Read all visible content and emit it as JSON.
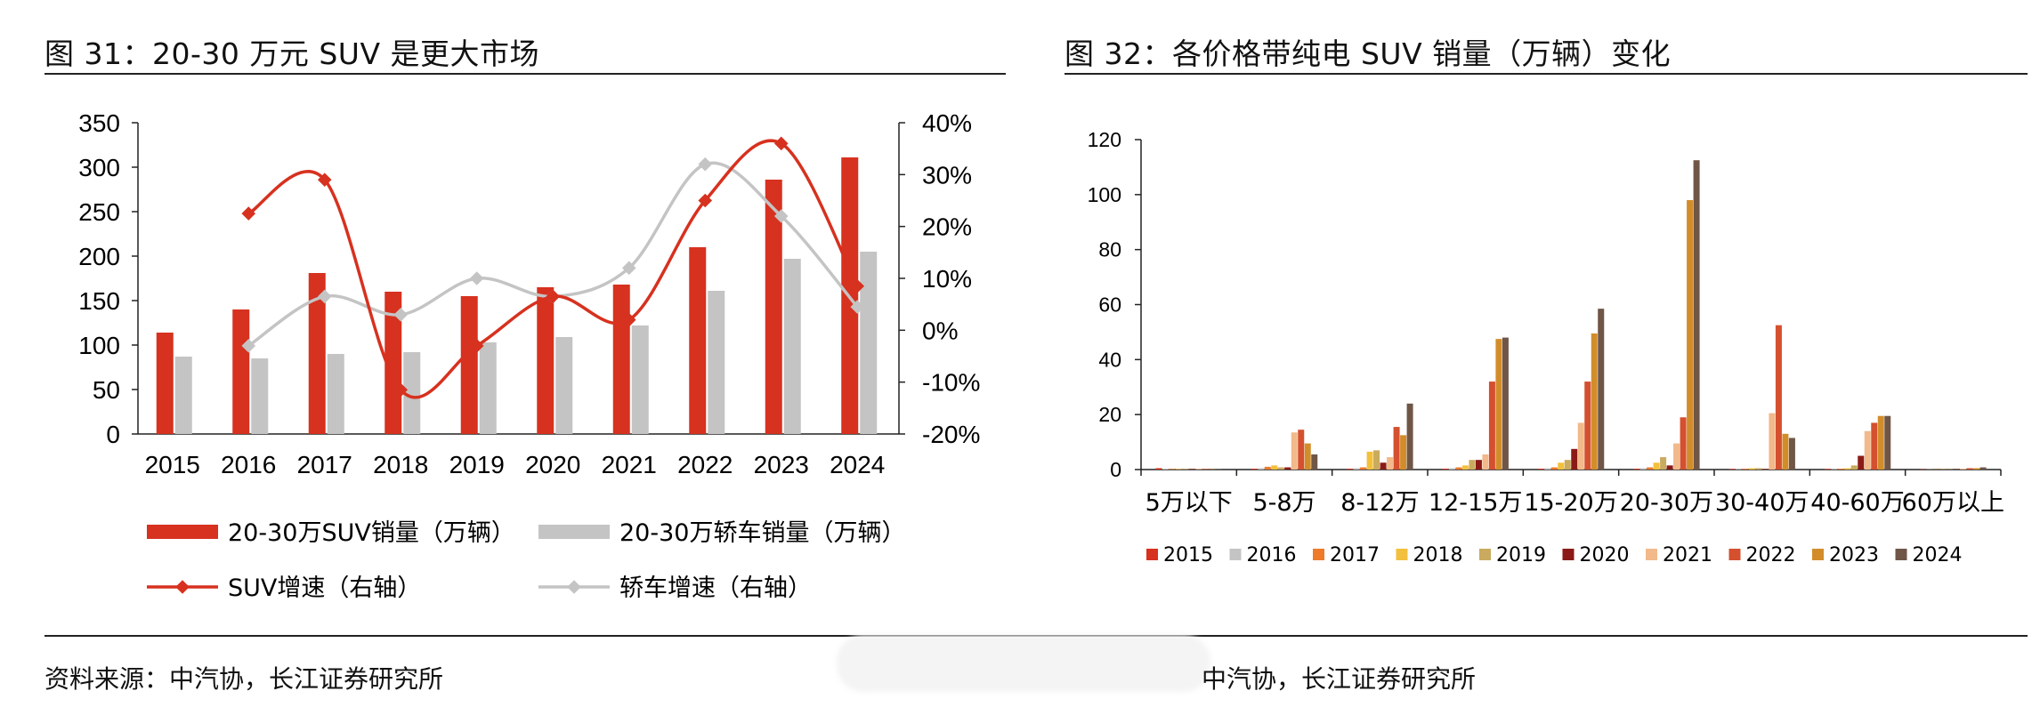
{
  "left": {
    "title": "图 31：20-30 万元 SUV 是更大市场",
    "source": "资料来源：中汽协，长江证券研究所"
  },
  "right": {
    "title": "图 32：各价格带纯电 SUV 销量（万辆）变化",
    "source": "中汽协，长江证券研究所"
  },
  "chart_data": [
    {
      "type": "bar+line",
      "title": "图 31：20-30 万元 SUV 是更大市场",
      "categories": [
        "2015",
        "2016",
        "2017",
        "2018",
        "2019",
        "2020",
        "2021",
        "2022",
        "2023",
        "2024"
      ],
      "y_left": {
        "min": 0,
        "max": 350,
        "ticks": [
          0,
          50,
          100,
          150,
          200,
          250,
          300,
          350
        ],
        "tick_labels": [
          "0",
          "50",
          "100",
          "150",
          "200",
          "250",
          "300",
          "350"
        ]
      },
      "y_right": {
        "min": -0.2,
        "max": 0.4,
        "ticks": [
          -0.2,
          -0.1,
          0,
          0.1,
          0.2,
          0.3,
          0.4
        ],
        "tick_labels": [
          "-20%",
          "-10%",
          "0%",
          "10%",
          "20%",
          "30%",
          "40%"
        ]
      },
      "series": [
        {
          "name": "20-30万SUV销量（万辆）",
          "kind": "bar",
          "axis": "left",
          "color": "#d7311f",
          "values": [
            114,
            140,
            181,
            160,
            155,
            165,
            168,
            210,
            286,
            311
          ]
        },
        {
          "name": "20-30万轿车销量（万辆）",
          "kind": "bar",
          "axis": "left",
          "color": "#c4c4c4",
          "values": [
            87,
            85,
            90,
            92,
            103,
            109,
            122,
            161,
            197,
            205
          ]
        },
        {
          "name": "SUV增速（右轴）",
          "kind": "line",
          "axis": "right",
          "color": "#d7311f",
          "values": [
            null,
            0.225,
            0.29,
            -0.115,
            -0.03,
            0.065,
            0.02,
            0.25,
            0.36,
            0.085
          ]
        },
        {
          "name": "轿车增速（右轴）",
          "kind": "line",
          "axis": "right",
          "color": "#c4c4c4",
          "values": [
            null,
            -0.03,
            0.065,
            0.03,
            0.1,
            0.065,
            0.12,
            0.32,
            0.22,
            0.045
          ]
        }
      ],
      "legend": "bottom"
    },
    {
      "type": "bar",
      "title": "图 32：各价格带纯电 SUV 销量（万辆）变化",
      "categories": [
        "5万以下",
        "5-8万",
        "8-12万",
        "12-15万",
        "15-20万",
        "20-30万",
        "30-40万",
        "40-60万",
        "60万以上"
      ],
      "ylim": [
        0,
        120
      ],
      "y_ticks": [
        "0",
        "20",
        "40",
        "60",
        "80",
        "100",
        "120"
      ],
      "series": [
        {
          "name": "2015",
          "color": "#d7311f",
          "values": [
            0.5,
            0.3,
            0.3,
            0.3,
            0.3,
            0.3,
            0.2,
            0.2,
            0.1
          ]
        },
        {
          "name": "2016",
          "color": "#c4c4c4",
          "values": [
            0.3,
            0.5,
            0.5,
            0.5,
            0.5,
            0.5,
            0.2,
            0.2,
            0.1
          ]
        },
        {
          "name": "2017",
          "color": "#ee7a2a",
          "values": [
            0.2,
            1.0,
            0.8,
            0.8,
            0.8,
            0.8,
            0.3,
            0.3,
            0.1
          ]
        },
        {
          "name": "2018",
          "color": "#f3c03d",
          "values": [
            0.2,
            1.5,
            6.5,
            1.5,
            2.5,
            2.5,
            0.5,
            0.5,
            0.1
          ]
        },
        {
          "name": "2019",
          "color": "#c9aa5e",
          "values": [
            0.2,
            0.8,
            7.0,
            3.5,
            3.5,
            4.5,
            0.5,
            1.5,
            0.1
          ]
        },
        {
          "name": "2020",
          "color": "#8b1a16",
          "values": [
            0.2,
            0.8,
            2.5,
            3.5,
            7.5,
            1.5,
            0.2,
            5.0,
            0.1
          ]
        },
        {
          "name": "2021",
          "color": "#f2b98a",
          "values": [
            0.2,
            13.5,
            4.5,
            5.5,
            17.0,
            9.5,
            20.5,
            14.0,
            0.3
          ]
        },
        {
          "name": "2022",
          "color": "#d4502f",
          "values": [
            0.2,
            14.5,
            15.5,
            32.0,
            32.0,
            19.0,
            52.5,
            17.0,
            0.5
          ]
        },
        {
          "name": "2023",
          "color": "#d28d2a",
          "values": [
            0.1,
            9.5,
            12.5,
            47.5,
            49.5,
            98.0,
            13.0,
            19.5,
            0.5
          ]
        },
        {
          "name": "2024",
          "color": "#6f5647",
          "values": [
            0.1,
            5.5,
            24.0,
            48.0,
            58.5,
            112.5,
            11.5,
            19.5,
            0.8
          ]
        }
      ],
      "legend": "bottom"
    }
  ]
}
